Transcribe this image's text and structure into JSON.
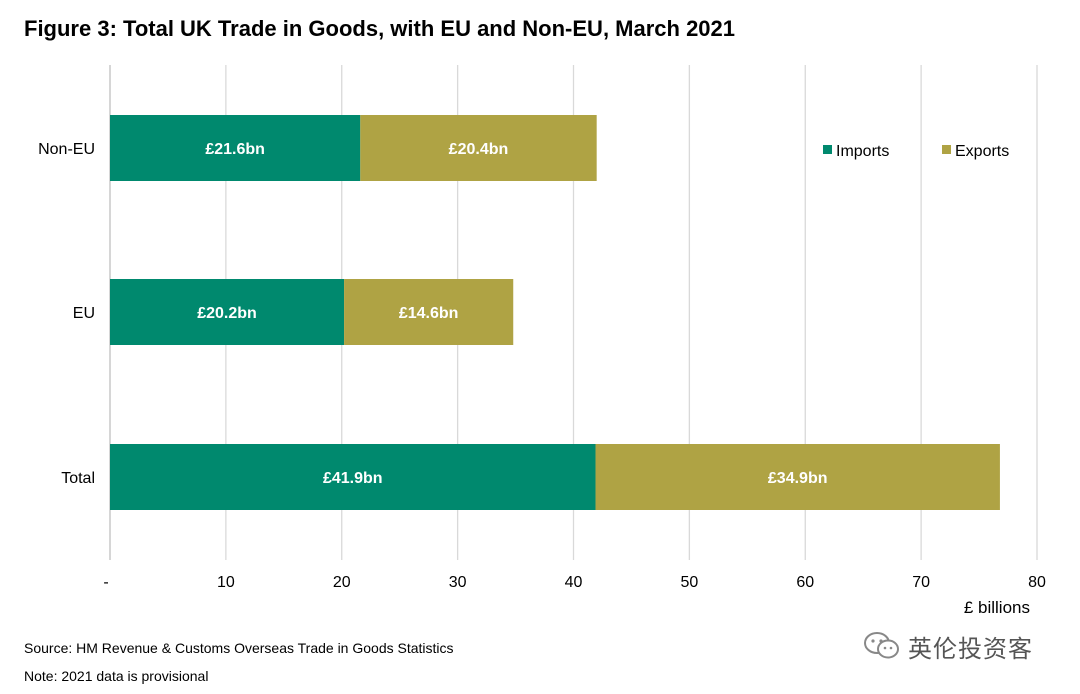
{
  "title": "Figure 3: Total UK Trade in Goods, with EU and Non-EU, March 2021",
  "footer": {
    "source": "Source: HM Revenue & Customs Overseas Trade in Goods Statistics",
    "note": "Note: 2021 data is provisional"
  },
  "watermark": {
    "text": "英伦投资客",
    "icon": "wechat-icon"
  },
  "colors": {
    "imports": "#00896E",
    "exports": "#AFA344",
    "grid": "#D9D9D9"
  },
  "chart_data": {
    "type": "bar",
    "orientation": "horizontal",
    "stacked": true,
    "categories": [
      "Non-EU",
      "EU",
      "Total"
    ],
    "series": [
      {
        "name": "Imports",
        "values": [
          21.6,
          20.2,
          41.9
        ],
        "labels": [
          "£21.6bn",
          "£20.2bn",
          "£41.9bn"
        ]
      },
      {
        "name": "Exports",
        "values": [
          20.4,
          14.6,
          34.9
        ],
        "labels": [
          "£20.4bn",
          "£14.6bn",
          "£34.9bn"
        ]
      }
    ],
    "xlabel": "£ billions",
    "xlim": [
      0,
      80
    ],
    "xticks": [
      0,
      10,
      20,
      30,
      40,
      50,
      60,
      70,
      80
    ],
    "xtick_labels": [
      "-",
      "10",
      "20",
      "30",
      "40",
      "50",
      "60",
      "70",
      "80"
    ],
    "grid": "vertical",
    "legend": "top-right"
  }
}
